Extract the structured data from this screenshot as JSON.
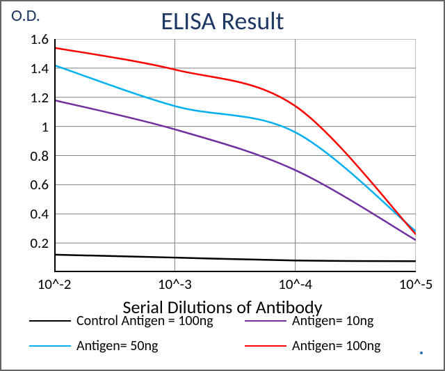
{
  "title": "ELISA Result",
  "y_axis_label": "O.D.",
  "x_axis_label": "Serial Dilutions  of Antibody",
  "chart": {
    "type": "line",
    "background_color": "#ffffff",
    "border_color": "#666666",
    "axis_color": "#000000",
    "grid_color": "#808080",
    "title_color": "#1f3864",
    "title_fontsize": 36,
    "ylabel_fontsize": 24,
    "xlabel_fontsize": 26,
    "tick_fontsize": 21,
    "legend_fontsize": 20,
    "x_ticks": [
      "10^-2",
      "10^-3",
      "10^-4",
      "10^-5"
    ],
    "y_min": 0,
    "y_max": 1.6,
    "y_ticks": [
      0.2,
      0.4,
      0.6,
      0.8,
      1,
      1.2,
      1.4,
      1.6
    ],
    "x_positions": [
      0,
      1,
      2,
      3
    ],
    "series": [
      {
        "id": "control",
        "label": "Control Antigen = 100ng",
        "color": "#000000",
        "values": [
          0.12,
          0.1,
          0.08,
          0.075
        ]
      },
      {
        "id": "antigen10",
        "label": "Antigen= 10ng",
        "color": "#7030a0",
        "values": [
          1.18,
          0.98,
          0.7,
          0.22
        ]
      },
      {
        "id": "antigen50",
        "label": "Antigen= 50ng",
        "color": "#00b0f0",
        "values": [
          1.42,
          1.14,
          0.96,
          0.28
        ]
      },
      {
        "id": "antigen100",
        "label": "Antigen= 100ng",
        "color": "#ff0000",
        "values": [
          1.54,
          1.39,
          1.14,
          0.26
        ]
      }
    ],
    "legend_layout": [
      [
        "control",
        "antigen10"
      ],
      [
        "antigen50",
        "antigen100"
      ]
    ],
    "legend_swatch_width": 60,
    "legend_col1_width": 310,
    "legend_col2_width": 250,
    "line_width": 2.5
  }
}
